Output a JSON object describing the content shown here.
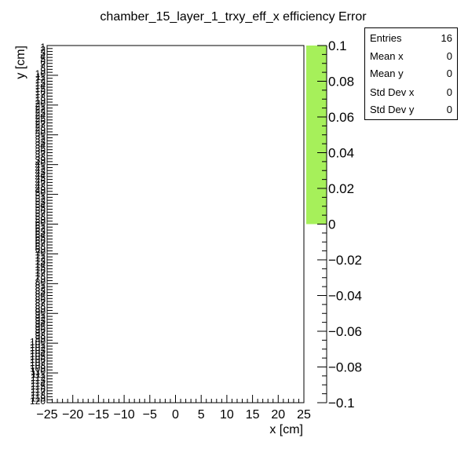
{
  "chart_data": {
    "type": "heatmap",
    "title": "chamber_15_layer_1_trxy_eff_x efficiency Error",
    "xlabel": "x [cm]",
    "ylabel": "y [cm]",
    "xlim": [
      -25,
      25
    ],
    "x_tick_labels": [
      "−25",
      "−20",
      "−15",
      "−10",
      "−5",
      "0",
      "5",
      "10",
      "15",
      "20",
      "25"
    ],
    "y_tick_labels": [
      "1",
      "2",
      "3",
      "4",
      "5",
      "6",
      "7",
      "8",
      "9",
      "10",
      "11",
      "12",
      "13",
      "14",
      "15",
      "16",
      "17",
      "18",
      "19",
      "20",
      "21",
      "22",
      "23",
      "24",
      "25",
      "26",
      "27",
      "28",
      "29",
      "30",
      "31",
      "32",
      "33",
      "34",
      "35",
      "36",
      "37",
      "38",
      "39",
      "40",
      "41",
      "42",
      "43",
      "44",
      "45",
      "46",
      "47",
      "48",
      "49",
      "50",
      "51",
      "52",
      "53",
      "54",
      "55",
      "56",
      "57",
      "58",
      "59",
      "60",
      "61",
      "62",
      "63",
      "64",
      "65",
      "66",
      "67",
      "68",
      "69",
      "70",
      "71",
      "72",
      "73",
      "74",
      "75",
      "76",
      "77",
      "78",
      "79",
      "80",
      "81",
      "82",
      "83",
      "84",
      "85",
      "86",
      "87",
      "88",
      "89",
      "90",
      "91",
      "92",
      "93",
      "94",
      "95",
      "96",
      "97",
      "98",
      "99",
      "100",
      "101",
      "102",
      "103",
      "104",
      "105",
      "106",
      "107",
      "108",
      "109",
      "110",
      "111",
      "112",
      "113",
      "114",
      "115",
      "116",
      "117",
      "118",
      "119",
      "120"
    ],
    "z_range": [
      -0.1,
      0.1
    ],
    "z_tick_labels": [
      "0.1",
      "0.08",
      "0.06",
      "0.04",
      "0.02",
      "0",
      "−0.02",
      "−0.04",
      "−0.06",
      "−0.08",
      "−0.1"
    ],
    "palette_fill_color": "#a6f05a",
    "palette_filled_range": [
      0,
      0.1
    ],
    "cells": []
  },
  "stats": {
    "rows": [
      {
        "label": "Entries",
        "value": "16"
      },
      {
        "label": "Mean x",
        "value": "0"
      },
      {
        "label": "Mean y",
        "value": "0"
      },
      {
        "label": "Std Dev x",
        "value": "0"
      },
      {
        "label": "Std Dev y",
        "value": "0"
      }
    ]
  }
}
